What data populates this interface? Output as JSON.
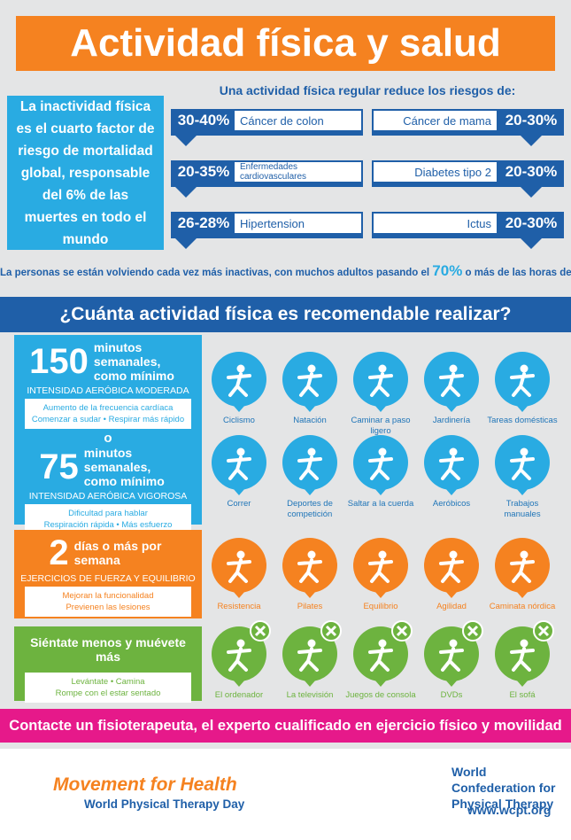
{
  "header": {
    "title": "Actividad física y salud"
  },
  "risks": {
    "intro": "La inactividad física es el cuarto factor de riesgo de mortalidad global, responsable del 6% de las muertes en todo el mundo",
    "heading": "Una actividad física regular reduce los riesgos de:",
    "items": [
      {
        "range": "30-40%",
        "label": "Cáncer de colon"
      },
      {
        "range": "20-30%",
        "label": "Cáncer de mama"
      },
      {
        "range": "20-35%",
        "label": "Enfermedades cardiovasculares"
      },
      {
        "range": "20-30%",
        "label": "Diabetes tipo 2"
      },
      {
        "range": "26-28%",
        "label": "Hipertension"
      },
      {
        "range": "20-30%",
        "label": "Ictus"
      }
    ],
    "note": {
      "before": "La personas se están volviendo cada vez más inactivas, con muchos adultos pasando el",
      "highlight": "70%",
      "after": "o más de las horas del día sentados"
    }
  },
  "recommendations": {
    "heading": "¿Cuánta actividad física es recomendable realizar?",
    "moderate": {
      "number": 150,
      "text": "minutos semanales, como mínimo",
      "intensity": "INTENSIDAD AERÓBICA MODERADA",
      "lines": [
        "Aumento de la frecuencia cardíaca",
        "Comenzar a sudar • Respirar más rápido"
      ]
    },
    "or": "o",
    "vigorous": {
      "number": 75,
      "text": "minutos semanales, como mínimo",
      "intensity": "INTENSIDAD AERÓBICA VIGOROSA",
      "lines": [
        "Dificultad para hablar",
        "Respiración rápida • Más esfuerzo"
      ]
    },
    "strength": {
      "number": 2,
      "text": "días o más por semana",
      "intensity": "EJERCICIOS DE FUERZA Y EQUILIBRIO",
      "lines": [
        "Mejoran la funcionalidad",
        "Previenen las lesiones"
      ]
    },
    "sit_less": {
      "text": "Siéntate menos y muévete más",
      "lines": [
        "Levántate • Camina",
        "Rompe con el estar sentado"
      ]
    }
  },
  "activities": {
    "rows": [
      [
        "Ciclismo",
        "Natación",
        "Caminar a paso ligero",
        "Jardinería",
        "Tareas domésticas"
      ],
      [
        "Correr",
        "Deportes de competición",
        "Saltar a la cuerda",
        "Aeróbicos",
        "Trabajos manuales"
      ],
      [
        "Resistencia",
        "Pilates",
        "Equilibrio",
        "Agilidad",
        "Caminata nórdica"
      ],
      [
        "El ordenador",
        "La televisión",
        "Juegos de consola",
        "DVDs",
        "El sofá"
      ]
    ]
  },
  "cta": "Contacte un fisioterapeuta, el experto cualificado en ejercicio físico y movilidad",
  "footer": {
    "campaign": "Movement for Health",
    "event": "World Physical Therapy Day",
    "organization": "World Confederation for Physical Therapy",
    "url": "www.wcpt.org"
  }
}
